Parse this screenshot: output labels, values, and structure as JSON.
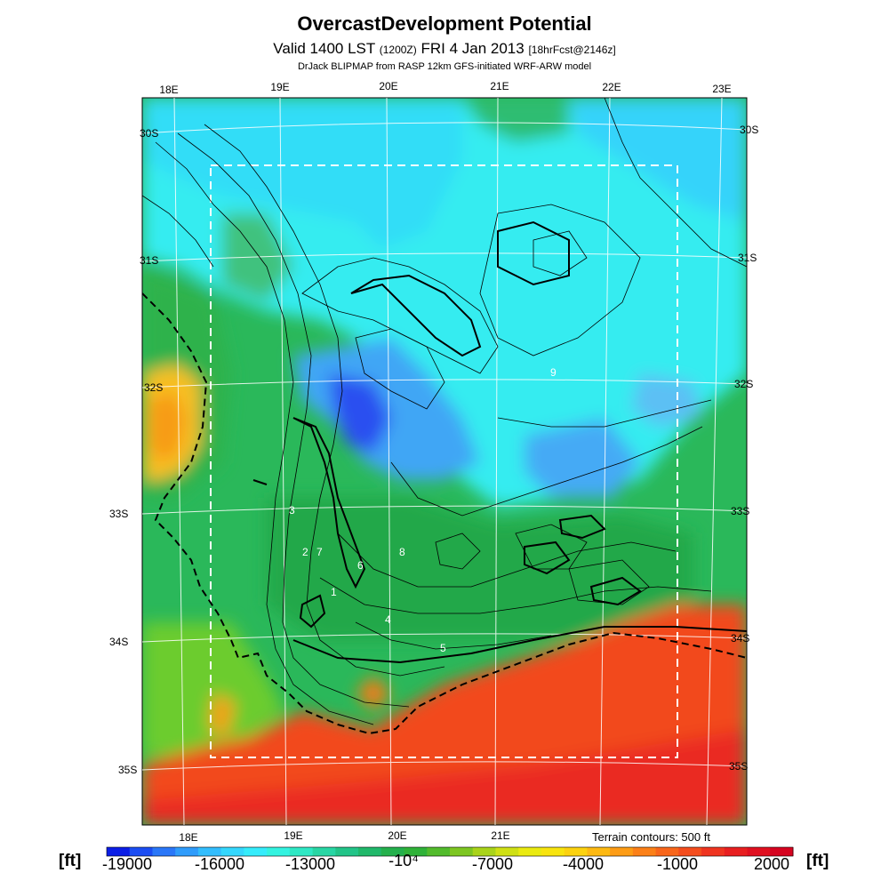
{
  "header": {
    "title": "OvercastDevelopment Potential",
    "valid_prefix": "Valid 1400 LST",
    "valid_small": "(1200Z)",
    "valid_date": "FRI 4 Jan 2013",
    "forecast": "[18hrFcst@2146z]",
    "credit": "DrJack BLIPMAP from RASP 12km GFS-initiated WRF-ARW model"
  },
  "map": {
    "lon_labels": [
      "18E",
      "19E",
      "20E",
      "21E",
      "22E",
      "23E"
    ],
    "lat_labels": [
      "30S",
      "31S",
      "32S",
      "33S",
      "34S",
      "35S"
    ],
    "terrain_note": "Terrain contours: 500 ft",
    "contour_numbers": [
      "1",
      "2",
      "3",
      "4",
      "5",
      "6",
      "7",
      "8",
      "9"
    ]
  },
  "colorbar": {
    "unit": "[ft]",
    "labels": [
      "-19000",
      "-16000",
      "-13000",
      "-10⁴",
      "-7000",
      "-4000",
      "-1000",
      "2000"
    ],
    "colors": [
      "#0b1ee6",
      "#1b4df2",
      "#2a77f8",
      "#2f9cfb",
      "#33bdfd",
      "#35d7fd",
      "#35ecfb",
      "#33f3e0",
      "#2ee8c4",
      "#28d6a4",
      "#22c488",
      "#20b86a",
      "#24b04c",
      "#2fb238",
      "#52bb2c",
      "#7dc621",
      "#a9d31a",
      "#cfe014",
      "#eaea10",
      "#f8e40e",
      "#fcd20f",
      "#fdb912",
      "#fd9c15",
      "#fb8018",
      "#f8661b",
      "#f44d1d",
      "#ef3420",
      "#e81f20",
      "#e01020",
      "#d60420"
    ]
  }
}
